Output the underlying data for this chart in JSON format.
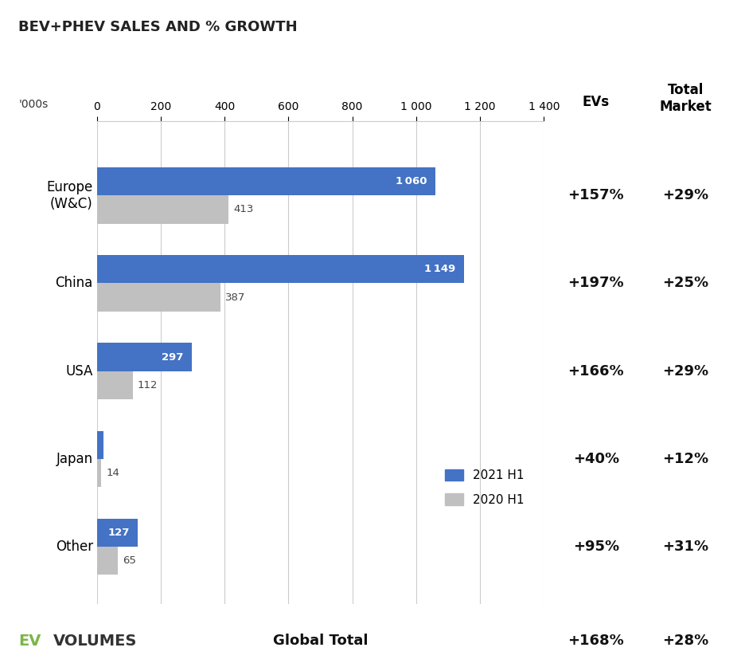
{
  "title": "BEV+PHEV SALES AND % GROWTH",
  "xlabel_unit": "'000s",
  "regions": [
    "Europe\n(W&C)",
    "China",
    "USA",
    "Japan",
    "Other"
  ],
  "values_2021": [
    1060,
    1149,
    297,
    20,
    127
  ],
  "values_2020": [
    413,
    387,
    112,
    14,
    65
  ],
  "ev_growth": [
    "+157%",
    "+197%",
    "+166%",
    "+40%",
    "+95%"
  ],
  "market_growth": [
    "+29%",
    "+25%",
    "+29%",
    "+12%",
    "+31%"
  ],
  "global_ev": "+168%",
  "global_market": "+28%",
  "color_2021": "#4472C4",
  "color_2020": "#C0C0C0",
  "bar_height": 0.32,
  "xlim": [
    0,
    1400
  ],
  "xticks": [
    0,
    200,
    400,
    600,
    800,
    1000,
    1200,
    1400
  ],
  "xtick_labels": [
    "0",
    "200",
    "400",
    "600",
    "800",
    "1 000",
    "1 200",
    "1 400"
  ],
  "col_evs_label": "EVs",
  "col_market_label": "Total\nMarket",
  "global_total_label": "Global Total",
  "legend_2021": "2021 H1",
  "legend_2020": "2020 H1",
  "ev_volumes_ev": "EV",
  "ev_volumes_rest": "VOLUMES",
  "ev_color": "#7AB648",
  "background_color": "#FFFFFF",
  "title_fontsize": 13,
  "axis_fontsize": 10,
  "bar_label_fontsize": 9.5,
  "annotation_fontsize": 13,
  "legend_fontsize": 11,
  "header_fontsize": 12,
  "global_fontsize": 13
}
